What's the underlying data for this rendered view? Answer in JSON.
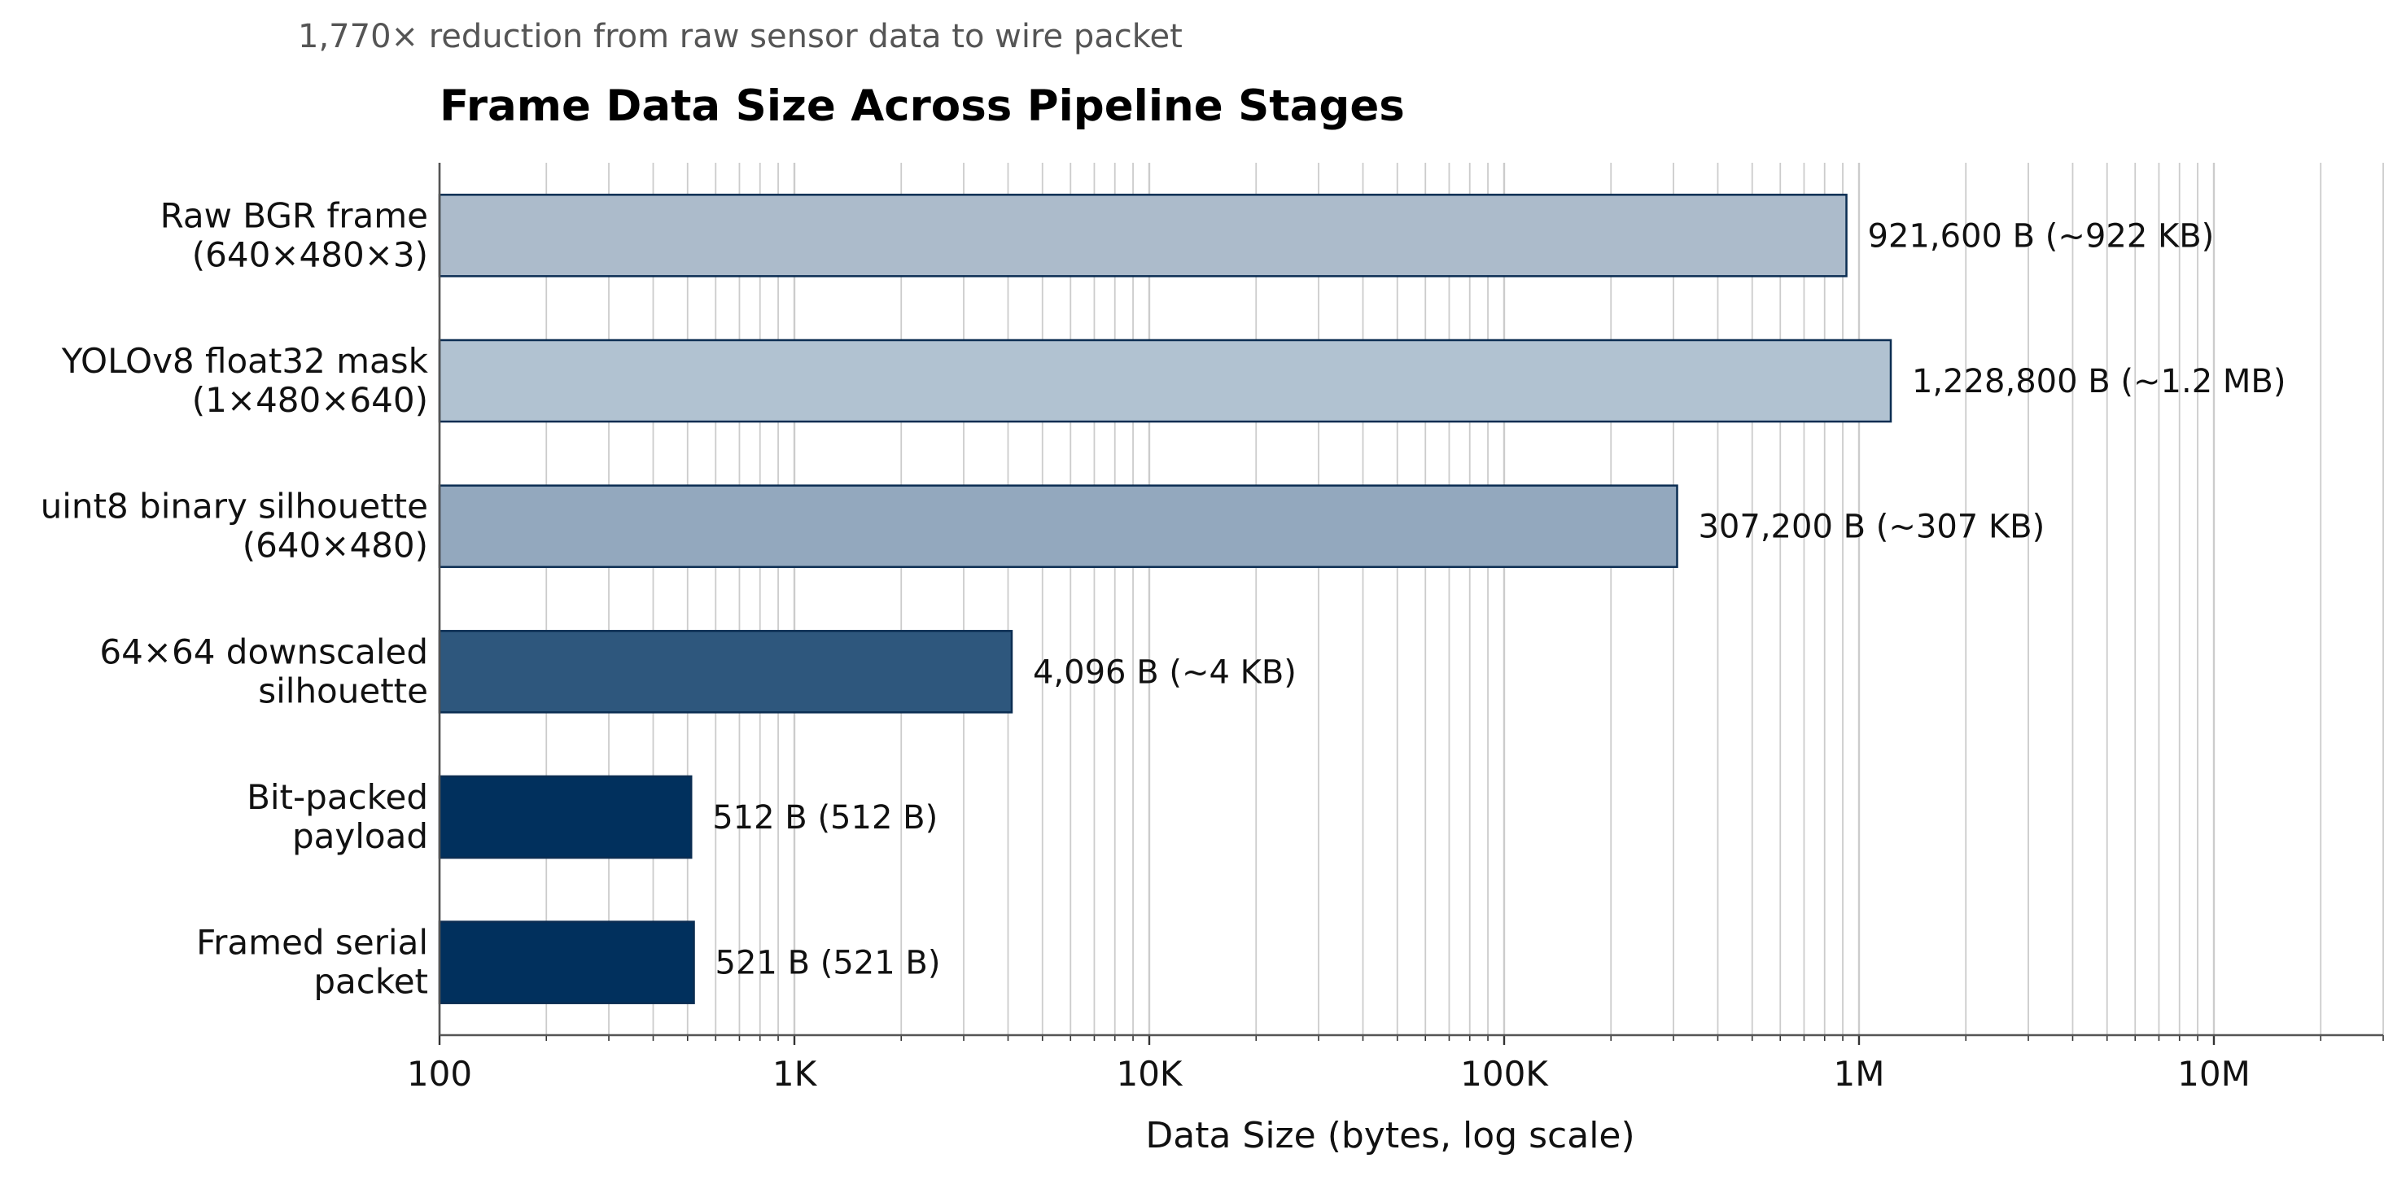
{
  "chart_data": {
    "type": "bar",
    "orientation": "horizontal",
    "subtitle": "1,770× reduction from raw sensor data to wire packet",
    "title": "Frame Data Size Across Pipeline Stages",
    "xlabel": "Data Size (bytes, log scale)",
    "ylabel": "",
    "xscale": "log",
    "xlim": [
      100,
      30000000
    ],
    "grid": "x-major-and-minor",
    "ticks": [
      {
        "value": 100,
        "label": "100"
      },
      {
        "value": 1000,
        "label": "1K"
      },
      {
        "value": 10000,
        "label": "10K"
      },
      {
        "value": 100000,
        "label": "100K"
      },
      {
        "value": 1000000,
        "label": "1M"
      },
      {
        "value": 10000000,
        "label": "10M"
      }
    ],
    "categories": [
      [
        "Raw BGR frame",
        "(640×480×3)"
      ],
      [
        "YOLOv8 float32 mask",
        "(1×480×640)"
      ],
      [
        "uint8 binary silhouette",
        "(640×480)"
      ],
      [
        "64×64 downscaled",
        "silhouette"
      ],
      [
        "Bit-packed",
        "payload"
      ],
      [
        "Framed serial",
        "packet"
      ]
    ],
    "values": [
      921600,
      1228800,
      307200,
      4096,
      512,
      521
    ],
    "value_labels": [
      "921,600 B  (~922 KB)",
      "1,228,800 B  (~1.2 MB)",
      "307,200 B  (~307 KB)",
      "4,096 B  (~4 KB)",
      "512 B  (512 B)",
      "521 B  (521 B)"
    ],
    "colors": [
      "#acbbcb",
      "#b1c2d1",
      "#93a8be",
      "#2e577d",
      "#01305d",
      "#01305d"
    ],
    "edge_color": "#0b2d52",
    "grid_color": "#cccccc"
  }
}
